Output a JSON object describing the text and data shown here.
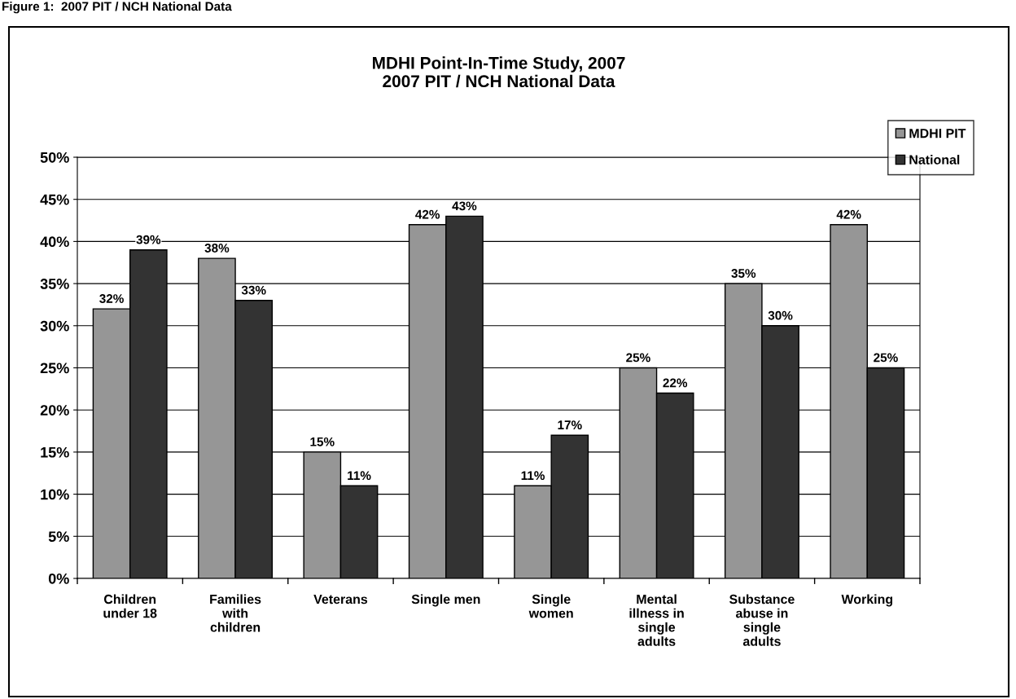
{
  "chart_data": {
    "type": "bar",
    "title": "MDHI Point-In-Time Study, 2007\n2007 PIT / NCH National Data",
    "annotations": [
      "Figure 1:  2007 PIT / NCH National Data"
    ],
    "categories": [
      "Children\nunder 18",
      "Families\nwith\nchildren",
      "Veterans",
      "Single men",
      "Single\nwomen",
      "Mental\nillness in\nsingle\nadults",
      "Substance\nabuse in\nsingle\nadults",
      "Working"
    ],
    "series": [
      {
        "name": "MDHI PIT",
        "color": "#969696",
        "values": [
          32,
          38,
          15,
          42,
          11,
          25,
          35,
          42
        ],
        "value_labels": [
          "32%",
          "38%",
          "15%",
          "42%",
          "11%",
          "25%",
          "35%",
          "42%"
        ]
      },
      {
        "name": "National",
        "color": "#333333",
        "values": [
          39,
          33,
          11,
          43,
          17,
          22,
          30,
          25
        ],
        "value_labels": [
          "39%",
          "33%",
          "11%",
          "43%",
          "17%",
          "22%",
          "30%",
          "25%"
        ]
      }
    ],
    "ylim": [
      0,
      50
    ],
    "yticks": [
      {
        "value": 0,
        "label": "0%"
      },
      {
        "value": 5,
        "label": "5%"
      },
      {
        "value": 10,
        "label": "10%"
      },
      {
        "value": 15,
        "label": "15%"
      },
      {
        "value": 20,
        "label": "20%"
      },
      {
        "value": 25,
        "label": "25%"
      },
      {
        "value": 30,
        "label": "30%"
      },
      {
        "value": 35,
        "label": "35%"
      },
      {
        "value": 40,
        "label": "40%"
      },
      {
        "value": 45,
        "label": "45%"
      },
      {
        "value": 50,
        "label": "50%"
      }
    ],
    "grid": "y",
    "legend": "top right"
  }
}
